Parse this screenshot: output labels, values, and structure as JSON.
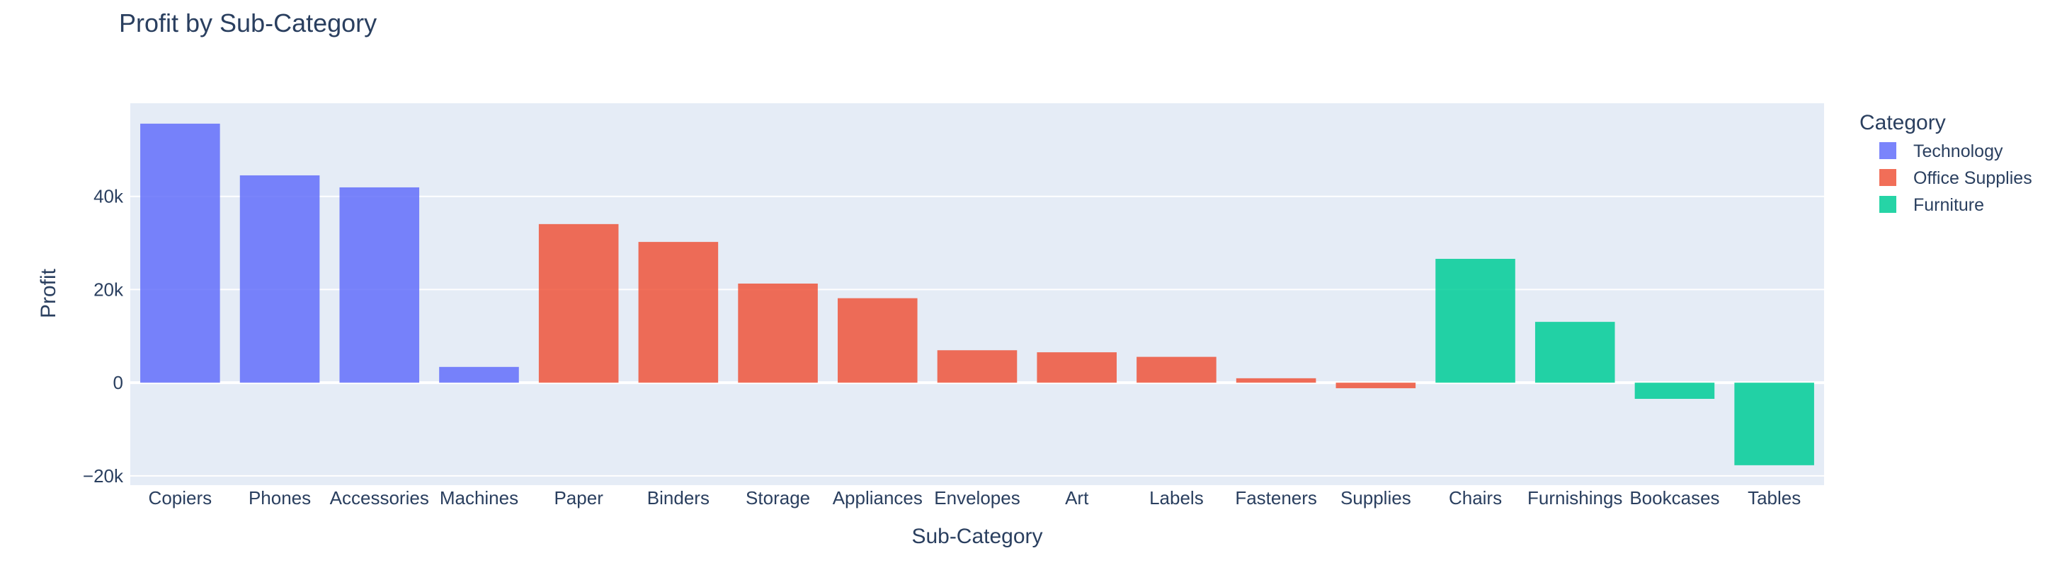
{
  "chart_data": {
    "type": "bar",
    "title": "Profit by Sub-Category",
    "xlabel": "Sub-Category",
    "ylabel": "Profit",
    "ylim": [
      -22000,
      60000
    ],
    "yticks": [
      -20000,
      0,
      20000,
      40000
    ],
    "ytick_labels": [
      "−20k",
      "0",
      "20k",
      "40k"
    ],
    "grid": true,
    "legend_title": "Category",
    "legend_position": "right",
    "categories": [
      "Copiers",
      "Phones",
      "Accessories",
      "Machines",
      "Paper",
      "Binders",
      "Storage",
      "Appliances",
      "Envelopes",
      "Art",
      "Labels",
      "Fasteners",
      "Supplies",
      "Chairs",
      "Furnishings",
      "Bookcases",
      "Tables"
    ],
    "series": [
      {
        "name": "Technology",
        "color": "#636efa",
        "points": [
          {
            "category": "Copiers",
            "value": 55618
          },
          {
            "category": "Phones",
            "value": 44516
          },
          {
            "category": "Accessories",
            "value": 41937
          },
          {
            "category": "Machines",
            "value": 3385
          }
        ]
      },
      {
        "name": "Office Supplies",
        "color": "#ef553b",
        "points": [
          {
            "category": "Paper",
            "value": 34054
          },
          {
            "category": "Binders",
            "value": 30222
          },
          {
            "category": "Storage",
            "value": 21279
          },
          {
            "category": "Appliances",
            "value": 18138
          },
          {
            "category": "Envelopes",
            "value": 6964
          },
          {
            "category": "Art",
            "value": 6528
          },
          {
            "category": "Labels",
            "value": 5546
          },
          {
            "category": "Fasteners",
            "value": 950
          },
          {
            "category": "Supplies",
            "value": -1189
          }
        ]
      },
      {
        "name": "Furniture",
        "color": "#00cc96",
        "points": [
          {
            "category": "Chairs",
            "value": 26590
          },
          {
            "category": "Furnishings",
            "value": 13059
          },
          {
            "category": "Bookcases",
            "value": -3473
          },
          {
            "category": "Tables",
            "value": -17725
          }
        ]
      }
    ],
    "plot_background": "#e5ecf6",
    "grid_color": "#ffffff",
    "text_color": "#2a3f5f",
    "bar_opacity": 0.85
  }
}
